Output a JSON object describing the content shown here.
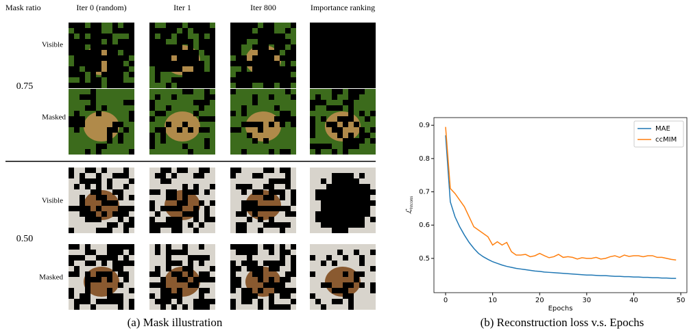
{
  "panel_a": {
    "mask_ratio_label": "Mask ratio",
    "columns": [
      "Iter 0 (random)",
      "Iter 1",
      "Iter 800",
      "Importance ranking"
    ],
    "groups": [
      {
        "ratio": "0.75",
        "rows": [
          "Visible",
          "Masked"
        ]
      },
      {
        "ratio": "0.50",
        "rows": [
          "Visible",
          "Masked"
        ]
      }
    ],
    "caption": "(a) Mask illustration"
  },
  "chart_data": {
    "type": "line",
    "caption": "(b) Reconstruction loss v.s. Epochs",
    "x_label": "Epochs",
    "y_label": {
      "symbol": "ℒ",
      "subscript": "recons"
    },
    "x": [
      0,
      1,
      2,
      3,
      4,
      5,
      6,
      7,
      8,
      9,
      10,
      11,
      12,
      13,
      14,
      15,
      16,
      17,
      18,
      19,
      20,
      21,
      22,
      23,
      24,
      25,
      26,
      27,
      28,
      29,
      30,
      31,
      32,
      33,
      34,
      35,
      36,
      37,
      38,
      39,
      40,
      41,
      42,
      43,
      44,
      45,
      46,
      47,
      48,
      49
    ],
    "series": [
      {
        "name": "MAE",
        "color": "#1f77b4",
        "values": [
          0.87,
          0.67,
          0.625,
          0.595,
          0.57,
          0.548,
          0.53,
          0.515,
          0.505,
          0.497,
          0.49,
          0.485,
          0.48,
          0.476,
          0.473,
          0.47,
          0.468,
          0.466,
          0.464,
          0.462,
          0.461,
          0.459,
          0.458,
          0.457,
          0.456,
          0.455,
          0.454,
          0.453,
          0.452,
          0.451,
          0.45,
          0.45,
          0.449,
          0.448,
          0.448,
          0.447,
          0.446,
          0.446,
          0.445,
          0.445,
          0.444,
          0.444,
          0.443,
          0.443,
          0.442,
          0.442,
          0.441,
          0.441,
          0.44,
          0.44
        ]
      },
      {
        "name": "ccMIM",
        "color": "#ff7f0e",
        "values": [
          0.895,
          0.71,
          0.695,
          0.675,
          0.655,
          0.625,
          0.595,
          0.585,
          0.575,
          0.565,
          0.54,
          0.55,
          0.54,
          0.548,
          0.52,
          0.51,
          0.51,
          0.512,
          0.505,
          0.508,
          0.515,
          0.508,
          0.502,
          0.505,
          0.512,
          0.503,
          0.505,
          0.503,
          0.498,
          0.502,
          0.5,
          0.5,
          0.503,
          0.498,
          0.5,
          0.505,
          0.508,
          0.503,
          0.51,
          0.506,
          0.508,
          0.508,
          0.505,
          0.508,
          0.508,
          0.503,
          0.503,
          0.5,
          0.497,
          0.495
        ]
      }
    ],
    "xlim": [
      -2.48,
      51.3
    ],
    "ylim": [
      0.397,
      0.923
    ],
    "xticks": [
      0,
      10,
      20,
      30,
      40,
      50
    ],
    "yticks": [
      0.5,
      0.6,
      0.7,
      0.8,
      0.9
    ],
    "legend": "upper right"
  }
}
